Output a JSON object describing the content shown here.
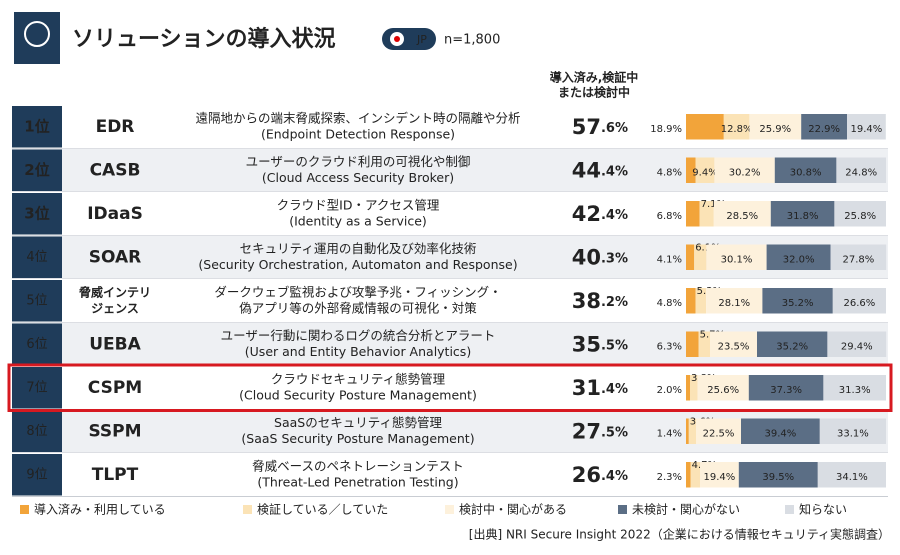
{
  "title": "ソリューションの導入状況",
  "badge": "JP",
  "n": "n=1,800",
  "column_header": [
    "導入済み,検証中",
    "または検討中"
  ],
  "highlighted_row": 6,
  "legend": [
    {
      "name": "導入済み・利用している",
      "color": "#f2a43a"
    },
    {
      "name": "検証している／していた",
      "color": "#fbe3b6"
    },
    {
      "name": "検討中・関心がある",
      "color": "#fdf1dc"
    },
    {
      "name": "未検討・関心がない",
      "color": "#5b6e85"
    },
    {
      "name": "知らない",
      "color": "#d9dde3"
    }
  ],
  "rows": [
    {
      "rank": "1位",
      "name": [
        "EDR"
      ],
      "desc": [
        "遠隔地からの端末脅威探索、インシデント時の隔離や分析",
        "(Endpoint Detection Response)"
      ],
      "total": 57.6,
      "total_label": "57.6%",
      "segments": [
        18.9,
        12.8,
        25.9,
        22.9,
        19.4
      ],
      "segment_labels": [
        "18.9%",
        "12.8%",
        "25.9%",
        "22.9%",
        "19.4%"
      ]
    },
    {
      "rank": "2位",
      "name": [
        "CASB"
      ],
      "desc": [
        "ユーザーのクラウド利用の可視化や制御",
        "(Cloud Access Security Broker)"
      ],
      "total": 44.4,
      "total_label": "44.4%",
      "segments": [
        4.8,
        9.4,
        30.2,
        30.8,
        24.8
      ],
      "segment_labels": [
        "4.8%",
        "9.4%",
        "30.2%",
        "30.8%",
        "24.8%"
      ]
    },
    {
      "rank": "3位",
      "name": [
        "IDaaS"
      ],
      "desc": [
        "クラウド型ID・アクセス管理",
        "(Identity as a Service)"
      ],
      "total": 42.4,
      "total_label": "42.4%",
      "segments": [
        6.8,
        7.1,
        28.5,
        31.8,
        25.8
      ],
      "segment_labels": [
        "6.8%",
        "7.1%",
        "28.5%",
        "31.8%",
        "25.8%"
      ]
    },
    {
      "rank": "4位",
      "name": [
        "SOAR"
      ],
      "desc": [
        "セキュリティ運用の自動化及び効率化技術",
        "(Security Orchestration, Automaton and Response)"
      ],
      "total": 40.3,
      "total_label": "40.3%",
      "segments": [
        4.1,
        6.1,
        30.1,
        32.0,
        27.8
      ],
      "segment_labels": [
        "4.1%",
        "6.1%",
        "30.1%",
        "32.0%",
        "27.8%"
      ]
    },
    {
      "rank": "5位",
      "name": [
        "脅威インテリ",
        "ジェンス"
      ],
      "desc": [
        "ダークウェブ監視および攻撃予兆・フィッシング・",
        "偽アプリ等の外部脅威情報の可視化・対策"
      ],
      "total": 38.2,
      "total_label": "38.2%",
      "segments": [
        4.8,
        5.3,
        28.1,
        35.2,
        26.6
      ],
      "segment_labels": [
        "4.8%",
        "5.3%",
        "28.1%",
        "35.2%",
        "26.6%"
      ]
    },
    {
      "rank": "6位",
      "name": [
        "UEBA"
      ],
      "desc": [
        "ユーザー行動に関わるログの統合分析とアラート",
        "(User and Entity Behavior Analytics)"
      ],
      "total": 35.5,
      "total_label": "35.5%",
      "segments": [
        6.3,
        5.7,
        23.5,
        35.2,
        29.4
      ],
      "segment_labels": [
        "6.3%",
        "5.7%",
        "23.5%",
        "35.2%",
        "29.4%"
      ]
    },
    {
      "rank": "7位",
      "name": [
        "CSPM"
      ],
      "desc": [
        "クラウドセキュリティ態勢管理",
        "(Cloud Security Posture Management)"
      ],
      "total": 31.4,
      "total_label": "31.4%",
      "segments": [
        2.0,
        3.8,
        25.6,
        37.3,
        31.3
      ],
      "segment_labels": [
        "2.0%",
        "3.8%",
        "25.6%",
        "37.3%",
        "31.3%"
      ]
    },
    {
      "rank": "8位",
      "name": [
        "SSPM"
      ],
      "desc": [
        "SaaSのセキュリティ態勢管理",
        "(SaaS Security Posture Management)"
      ],
      "total": 27.5,
      "total_label": "27.5%",
      "segments": [
        1.4,
        3.6,
        22.5,
        39.4,
        33.1
      ],
      "segment_labels": [
        "1.4%",
        "3.6%",
        "22.5%",
        "39.4%",
        "33.1%"
      ]
    },
    {
      "rank": "9位",
      "name": [
        "TLPT"
      ],
      "desc": [
        "脅威ベースのペネトレーションテスト",
        "(Threat-Led Penetration Testing)"
      ],
      "total": 26.4,
      "total_label": "26.4%",
      "segments": [
        2.3,
        4.7,
        19.4,
        39.5,
        34.1
      ],
      "segment_labels": [
        "2.3%",
        "4.7%",
        "19.4%",
        "39.5%",
        "34.1%"
      ]
    }
  ],
  "source": "[出典] NRI Secure Insight 2022（企業における情報セキュリティ実態調査）"
}
